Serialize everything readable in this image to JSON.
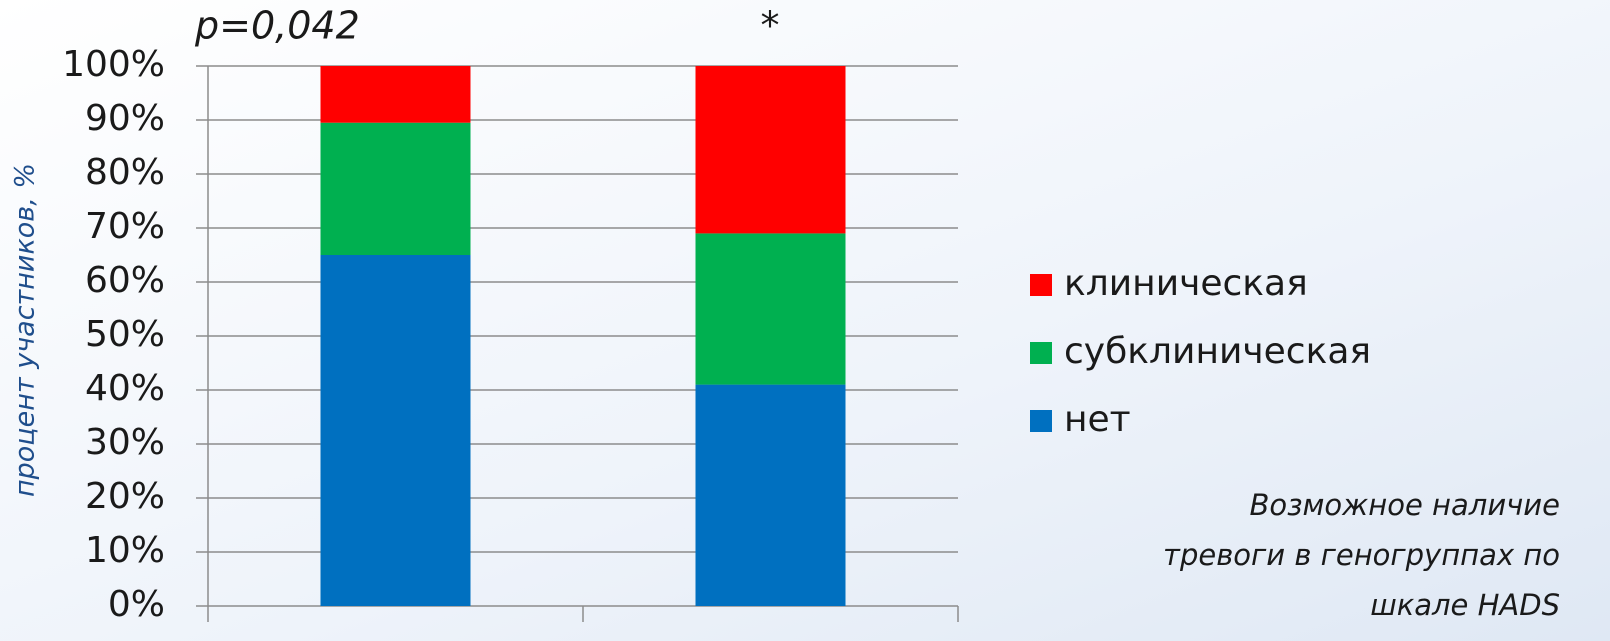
{
  "chart_data": {
    "type": "stacked_bar",
    "annotations": [
      "p=0,042",
      "*"
    ],
    "y_axis_label": "процент участников, %",
    "caption": [
      "Возможное наличие",
      "тревоги в геногруппах по",
      "шкале HADS"
    ],
    "categories": [
      null,
      null
    ],
    "series": [
      {
        "name": "нет",
        "color": "#0070c0",
        "values": [
          65,
          41
        ]
      },
      {
        "name": "субклиническая",
        "color": "#00b050",
        "values": [
          24.5,
          28
        ]
      },
      {
        "name": "клиническая",
        "color": "#ff0000",
        "values": [
          10.5,
          31
        ]
      }
    ],
    "ylim": [
      0,
      100
    ],
    "yticks": [
      {
        "value": 0,
        "label": "0%"
      },
      {
        "value": 10,
        "label": "10%"
      },
      {
        "value": 20,
        "label": "20%"
      },
      {
        "value": 30,
        "label": "30%"
      },
      {
        "value": 40,
        "label": "40%"
      },
      {
        "value": 50,
        "label": "50%"
      },
      {
        "value": 60,
        "label": "60%"
      },
      {
        "value": 70,
        "label": "70%"
      },
      {
        "value": 80,
        "label": "80%"
      },
      {
        "value": 90,
        "label": "90%"
      },
      {
        "value": 100,
        "label": "100%"
      }
    ],
    "grid": true,
    "legend": "right"
  }
}
